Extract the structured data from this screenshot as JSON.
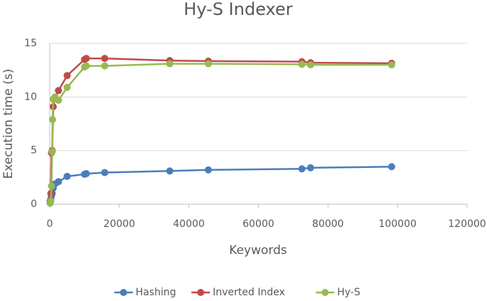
{
  "chart_data": {
    "type": "line",
    "title": "Hy-S Indexer",
    "x_label": "Keywords",
    "y_label": "Execution time (s)",
    "xlim": [
      0,
      120000
    ],
    "xticks": [
      0,
      20000,
      40000,
      60000,
      80000,
      100000,
      120000
    ],
    "ylim": [
      0,
      15
    ],
    "yticks": [
      0,
      5,
      10,
      15
    ],
    "grid": true,
    "legend": "bottom",
    "series": [
      {
        "name": "Hashing",
        "color": "#4a7ebb",
        "x": [
          100,
          300,
          500,
          700,
          1000,
          1500,
          2500,
          5000,
          10000,
          10500,
          15800,
          34500,
          45600,
          72500,
          75000,
          98300
        ],
        "values": [
          0.1,
          0.5,
          0.8,
          1.0,
          1.5,
          1.9,
          2.1,
          2.6,
          2.8,
          2.85,
          2.95,
          3.1,
          3.2,
          3.3,
          3.4,
          3.5
        ]
      },
      {
        "name": "Inverted Index",
        "color": "#be4b48",
        "x": [
          100,
          300,
          500,
          700,
          1000,
          1500,
          2500,
          5000,
          10000,
          10500,
          15800,
          34500,
          45600,
          72500,
          75000,
          98300
        ],
        "values": [
          0.3,
          1.0,
          4.8,
          5.0,
          9.1,
          9.9,
          10.6,
          12.0,
          13.5,
          13.6,
          13.6,
          13.4,
          13.35,
          13.3,
          13.2,
          13.15
        ]
      },
      {
        "name": "Hy-S",
        "color": "#98b954",
        "x": [
          100,
          300,
          500,
          700,
          800,
          1000,
          1500,
          2500,
          5000,
          10000,
          10500,
          15800,
          34500,
          45600,
          72500,
          75000,
          98300
        ],
        "values": [
          0.1,
          0.3,
          1.7,
          4.9,
          7.9,
          9.8,
          10.0,
          9.7,
          10.9,
          12.8,
          12.9,
          12.9,
          13.1,
          13.1,
          13.05,
          13.0,
          13.0
        ]
      }
    ]
  }
}
